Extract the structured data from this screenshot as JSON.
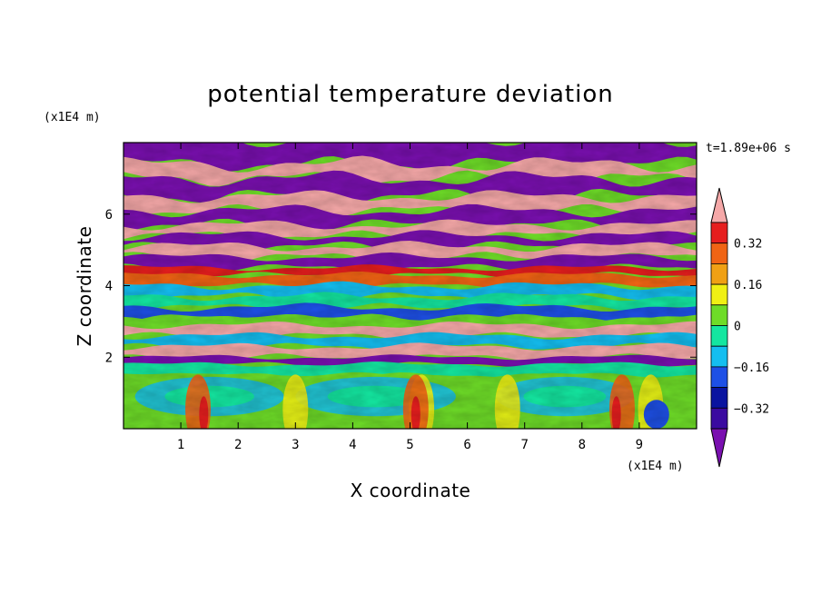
{
  "chart_data": {
    "type": "heatmap",
    "title": "potential temperature deviation",
    "xlabel": "X coordinate",
    "ylabel": "Z coordinate",
    "x_unit": "(x1E4 m)",
    "z_unit": "(x1E4 m)",
    "time_label": "t=1.89e+06 s",
    "xlim": [
      0,
      10
    ],
    "ylim": [
      0,
      8
    ],
    "x_ticks": [
      1,
      2,
      3,
      4,
      5,
      6,
      7,
      8,
      9
    ],
    "y_ticks": [
      2,
      4,
      6
    ],
    "colorbar": {
      "levels": [
        -0.4,
        -0.32,
        -0.24,
        -0.16,
        -0.08,
        0,
        0.08,
        0.16,
        0.24,
        0.32,
        0.4
      ],
      "labels": [
        "0.32",
        "0.16",
        "0",
        "−0.16",
        "−0.32"
      ],
      "label_values": [
        0.32,
        0.16,
        0,
        -0.16,
        -0.32
      ],
      "colors": [
        "#7a10b0",
        "#3a0aa0",
        "#0a14a0",
        "#1e50e6",
        "#14bef0",
        "#14e6a0",
        "#6edc28",
        "#f0f014",
        "#f0a014",
        "#f06414",
        "#e61e1e",
        "#f5a8a8"
      ],
      "extend": "both"
    }
  }
}
